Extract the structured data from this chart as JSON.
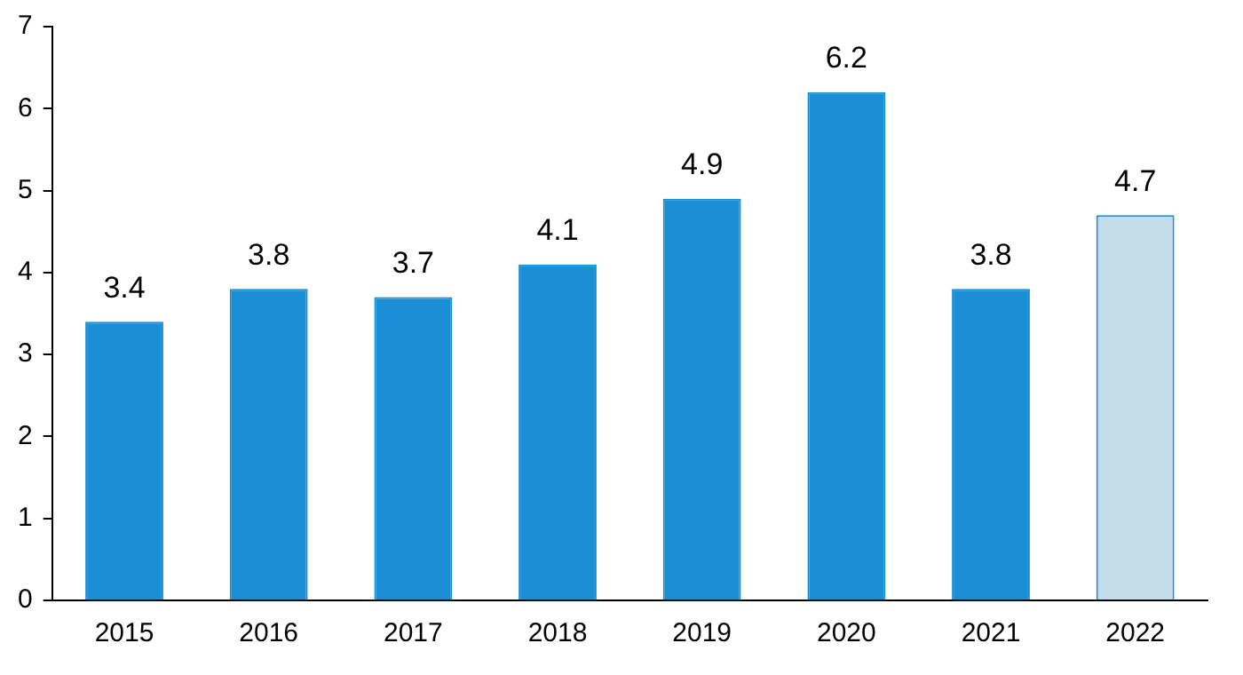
{
  "chart_data": {
    "type": "bar",
    "categories": [
      "2015",
      "2016",
      "2017",
      "2018",
      "2019",
      "2020",
      "2021",
      "2022"
    ],
    "values": [
      3.4,
      3.8,
      3.7,
      4.1,
      4.9,
      6.2,
      3.8,
      4.7
    ],
    "color": "#1a8fd6",
    "colors": [
      "#1a8fd6",
      "#1a8fd6",
      "#1a8fd6",
      "#1a8fd6",
      "#1a8fd6",
      "#1a8fd6",
      "#1a8fd6",
      "#c4dde8"
    ],
    "ylim": [
      0,
      7
    ],
    "yticks": [
      0,
      1,
      2,
      3,
      4,
      5,
      6,
      7
    ],
    "grid": false,
    "legend": false,
    "data_labels": true
  }
}
